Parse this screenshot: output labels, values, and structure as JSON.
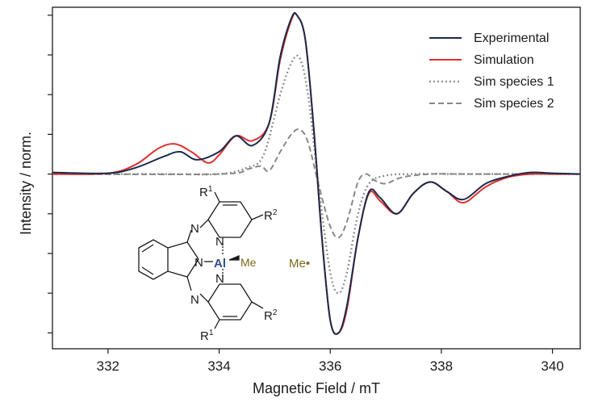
{
  "chart_data": {
    "type": "line",
    "xlabel": "Magnetic Field / mT",
    "ylabel": "Intensity / norm.",
    "xlim": [
      331,
      340.5
    ],
    "ylim": [
      -1.1,
      1.05
    ],
    "x_ticks": [
      332,
      334,
      336,
      338,
      340
    ],
    "x_tick_labels": [
      "332",
      "334",
      "336",
      "338",
      "340"
    ],
    "y_ticks": [
      -1,
      -0.75,
      -0.5,
      -0.25,
      0,
      0.25,
      0.5,
      0.75,
      1
    ],
    "y_tick_labels_shown": false,
    "grid": false,
    "legend_position": "top-right",
    "series": [
      {
        "name": "Experimental",
        "color": "#1b2a4a",
        "style": "solid",
        "x": [
          331.0,
          332.0,
          332.5,
          333.0,
          333.3,
          333.6,
          334.0,
          334.3,
          334.6,
          334.9,
          335.1,
          335.3,
          335.4,
          335.55,
          335.7,
          335.85,
          336.0,
          336.15,
          336.3,
          336.5,
          336.7,
          336.9,
          337.2,
          337.5,
          337.8,
          338.1,
          338.4,
          338.8,
          339.2,
          339.6,
          340.0,
          340.5
        ],
        "y": [
          0.01,
          0.005,
          0.04,
          0.11,
          0.14,
          0.09,
          0.14,
          0.24,
          0.18,
          0.32,
          0.74,
          0.98,
          1.0,
          0.85,
          0.3,
          -0.4,
          -0.92,
          -1.0,
          -0.83,
          -0.4,
          -0.11,
          -0.15,
          -0.25,
          -0.12,
          -0.05,
          -0.11,
          -0.16,
          -0.06,
          -0.015,
          0.01,
          0.005,
          0.0
        ]
      },
      {
        "name": "Simulation",
        "color": "#e03030",
        "style": "solid",
        "x": [
          331.0,
          332.0,
          332.5,
          332.9,
          333.2,
          333.5,
          333.8,
          334.0,
          334.3,
          334.6,
          334.9,
          335.1,
          335.3,
          335.4,
          335.55,
          335.7,
          335.85,
          336.0,
          336.15,
          336.3,
          336.5,
          336.7,
          336.9,
          337.2,
          337.5,
          337.8,
          338.1,
          338.4,
          338.8,
          339.2,
          339.6,
          340.0,
          340.5
        ],
        "y": [
          0.0,
          0.005,
          0.06,
          0.16,
          0.19,
          0.14,
          0.07,
          0.12,
          0.24,
          0.21,
          0.32,
          0.72,
          0.97,
          1.0,
          0.85,
          0.3,
          -0.4,
          -0.92,
          -1.0,
          -0.85,
          -0.4,
          -0.12,
          -0.17,
          -0.25,
          -0.12,
          -0.05,
          -0.11,
          -0.18,
          -0.08,
          -0.02,
          0.0,
          0.0,
          0.0
        ]
      },
      {
        "name": "Sim species 1",
        "color": "#888888",
        "style": "dotted",
        "x": [
          331.0,
          333.0,
          334.0,
          334.5,
          334.8,
          335.1,
          335.3,
          335.45,
          335.6,
          335.8,
          336.0,
          336.15,
          336.3,
          336.5,
          336.7,
          337.0,
          337.5,
          338.5,
          340.5
        ],
        "y": [
          0.0,
          0.0,
          0.0,
          0.04,
          0.12,
          0.5,
          0.7,
          0.73,
          0.5,
          -0.1,
          -0.62,
          -0.75,
          -0.62,
          -0.25,
          -0.06,
          -0.01,
          0.0,
          0.0,
          0.0
        ]
      },
      {
        "name": "Sim species 2",
        "color": "#888888",
        "style": "dashed",
        "x": [
          331.0,
          334.0,
          334.5,
          334.75,
          334.9,
          335.1,
          335.3,
          335.45,
          335.6,
          335.8,
          336.0,
          336.15,
          336.3,
          336.5,
          336.65,
          336.8,
          337.0,
          337.3,
          337.8,
          338.5,
          340.5
        ],
        "y": [
          0.0,
          0.0,
          0.03,
          0.05,
          0.02,
          0.14,
          0.25,
          0.28,
          0.2,
          -0.08,
          -0.33,
          -0.4,
          -0.3,
          -0.05,
          0.0,
          -0.04,
          -0.06,
          -0.02,
          0.0,
          0.0,
          0.0
        ]
      }
    ],
    "annotations": {
      "me_radical": "Me•",
      "structure": {
        "metal": "Al",
        "ligand_methyl": "Me",
        "substituent_top": "R",
        "substituent_top_sup": "1",
        "substituent_top_right": "R",
        "substituent_top_right_sup": "2",
        "substituent_bottom": "R",
        "substituent_bottom_sup": "1",
        "substituent_bottom_right": "R",
        "substituent_bottom_right_sup": "2",
        "nitrogen": "N"
      }
    }
  }
}
